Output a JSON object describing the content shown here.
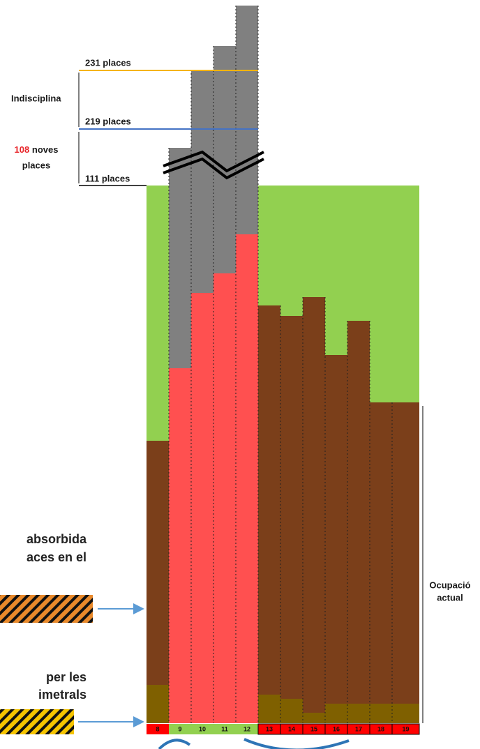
{
  "labels": {
    "top_line": "231 places",
    "indiscipline": "Indisciplina",
    "mid_line": "219 places",
    "new_count": "108",
    "new_text_1": "noves",
    "new_text_2": "places",
    "base_line": "111 places",
    "left_text_1": "absorbida",
    "left_text_2": "aces en el",
    "left_text_3": "per les",
    "left_text_4": "imetrals",
    "right_text_1": "Ocupació",
    "right_text_2": "actual"
  },
  "hours": [
    "8",
    "9",
    "10",
    "11",
    "12",
    "13",
    "14",
    "15",
    "16",
    "17",
    "18",
    "19"
  ]
}
